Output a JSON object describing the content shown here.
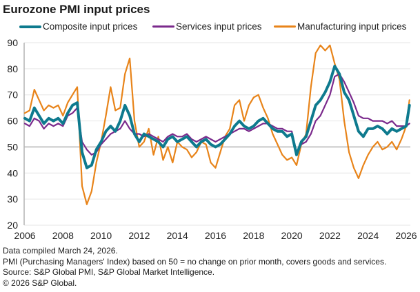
{
  "chart_data": {
    "type": "line",
    "title": "Eurozone PMI input prices",
    "xlabel": "",
    "ylabel": "",
    "xlim": [
      2006,
      2026.25
    ],
    "ylim": [
      20,
      90
    ],
    "yticks": [
      20,
      30,
      40,
      50,
      60,
      70,
      80,
      90
    ],
    "xticks": [
      2006,
      2008,
      2010,
      2012,
      2014,
      2016,
      2018,
      2020,
      2022,
      2024,
      2026
    ],
    "reference_line": 50,
    "grid": true,
    "legend_position": "top",
    "x": [
      2006.0,
      2006.25,
      2006.5,
      2006.75,
      2007.0,
      2007.25,
      2007.5,
      2007.75,
      2008.0,
      2008.25,
      2008.5,
      2008.75,
      2009.0,
      2009.25,
      2009.5,
      2009.75,
      2010.0,
      2010.25,
      2010.5,
      2010.75,
      2011.0,
      2011.25,
      2011.5,
      2011.75,
      2012.0,
      2012.25,
      2012.5,
      2012.75,
      2013.0,
      2013.25,
      2013.5,
      2013.75,
      2014.0,
      2014.25,
      2014.5,
      2014.75,
      2015.0,
      2015.25,
      2015.5,
      2015.75,
      2016.0,
      2016.25,
      2016.5,
      2016.75,
      2017.0,
      2017.25,
      2017.5,
      2017.75,
      2018.0,
      2018.25,
      2018.5,
      2018.75,
      2019.0,
      2019.25,
      2019.5,
      2019.75,
      2020.0,
      2020.25,
      2020.5,
      2020.75,
      2021.0,
      2021.25,
      2021.5,
      2021.75,
      2022.0,
      2022.25,
      2022.5,
      2022.75,
      2023.0,
      2023.25,
      2023.5,
      2023.75,
      2024.0,
      2024.25,
      2024.5,
      2024.75,
      2025.0,
      2025.25,
      2025.5,
      2025.75,
      2026.0,
      2026.17
    ],
    "series": [
      {
        "name": "Composite input prices",
        "color": "#0e7a8e",
        "values": [
          61,
          60,
          65,
          62,
          59,
          61,
          60,
          61,
          59,
          63,
          66,
          67,
          48,
          42,
          43,
          49,
          52,
          56,
          58,
          56,
          60,
          66,
          62,
          55,
          52,
          55,
          54,
          53,
          52,
          50,
          53,
          54,
          52,
          53,
          54,
          52,
          50,
          52,
          53,
          51,
          50,
          51,
          53,
          55,
          58,
          60,
          58,
          57,
          58,
          60,
          61,
          59,
          57,
          56,
          56,
          54,
          55,
          47,
          52,
          54,
          60,
          66,
          68,
          71,
          75,
          81,
          78,
          71,
          68,
          62,
          56,
          54,
          57,
          57,
          58,
          57,
          55,
          57,
          56,
          57,
          58,
          66
        ],
        "line_width": "thick"
      },
      {
        "name": "Services input prices",
        "color": "#7b2a8c",
        "values": [
          59,
          58,
          61,
          60,
          57,
          59,
          58,
          59,
          58,
          62,
          63,
          65,
          52,
          49,
          47,
          48,
          51,
          53,
          55,
          56,
          57,
          60,
          57,
          55,
          55,
          54,
          55,
          54,
          53,
          52,
          54,
          55,
          54,
          54,
          55,
          53,
          52,
          53,
          54,
          53,
          52,
          53,
          54,
          55,
          56,
          57,
          57,
          56,
          57,
          58,
          59,
          59,
          58,
          57,
          57,
          56,
          56,
          48,
          51,
          52,
          55,
          60,
          62,
          66,
          70,
          77,
          78,
          75,
          71,
          67,
          62,
          61,
          61,
          60,
          60,
          60,
          59,
          60,
          58,
          58,
          58,
          59
        ],
        "line_width": "normal"
      },
      {
        "name": "Manufacturing input prices",
        "color": "#e8841a",
        "values": [
          63,
          64,
          72,
          68,
          64,
          66,
          65,
          66,
          62,
          67,
          70,
          73,
          35,
          28,
          33,
          44,
          52,
          62,
          73,
          64,
          65,
          78,
          84,
          60,
          50,
          52,
          57,
          47,
          54,
          45,
          50,
          44,
          52,
          50,
          49,
          46,
          48,
          52,
          51,
          44,
          42,
          48,
          54,
          57,
          66,
          68,
          60,
          66,
          69,
          70,
          65,
          61,
          55,
          51,
          47,
          45,
          46,
          43,
          51,
          55,
          73,
          86,
          89,
          87,
          89,
          82,
          76,
          60,
          48,
          42,
          38,
          43,
          47,
          50,
          52,
          49,
          50,
          52,
          49,
          53,
          58,
          68
        ],
        "line_width": "normal"
      }
    ]
  },
  "legend": {
    "items": [
      {
        "label": "Composite input prices",
        "color": "#0e7a8e"
      },
      {
        "label": "Services input prices",
        "color": "#7b2a8c"
      },
      {
        "label": "Manufacturing input prices",
        "color": "#e8841a"
      }
    ]
  },
  "footer": {
    "line1": "Data compiled March 24, 2026.",
    "line2": "PMI (Purchasing Managers' Index) based on 50 = no change on prior month, covers goods and services.",
    "line3": "Source: S&P Global PMI, S&P Global Market Intelligence.",
    "line4": "© 2026 S&P Global."
  }
}
